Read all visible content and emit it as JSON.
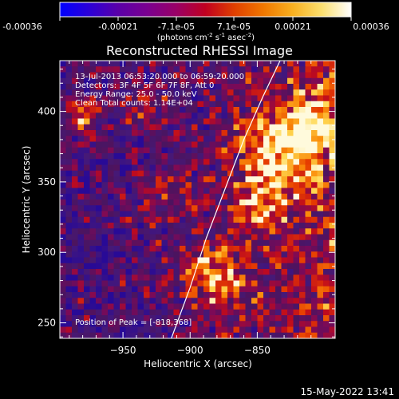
{
  "colorbar": {
    "ticks": [
      "-0.00036",
      "-0.00021",
      "-7.1e-05",
      "7.1e-05",
      "0.00021",
      "0.00036"
    ],
    "units_prefix": "(photons cm",
    "units_exp1": "-2",
    "units_mid": " s",
    "units_exp2": "-1",
    "units_end": " asec",
    "units_exp3": "-2",
    "units_close": ")",
    "gradient": [
      "#0000ff",
      "#2b00d8",
      "#5a00a8",
      "#7a0090",
      "#990066",
      "#c00020",
      "#e04000",
      "#f07800",
      "#f8b020",
      "#fce070",
      "#ffffff"
    ]
  },
  "chart_data": {
    "type": "heatmap",
    "title": "Reconstructed RHESSI Image",
    "xlabel": "Heliocentric X (arcsec)",
    "ylabel": "Heliocentric Y (arcsec)",
    "xlim": [
      -997,
      -792
    ],
    "ylim": [
      239,
      436
    ],
    "xticks": [
      -950,
      -900,
      -850
    ],
    "xtick_labels": [
      "−950",
      "−900",
      "−850"
    ],
    "yticks": [
      250,
      300,
      350,
      400
    ],
    "ytick_labels": [
      "250",
      "300",
      "350",
      "400"
    ],
    "annotations": [
      "13-Jul-2013 06:53:20.000 to 06:59:20.000",
      "Detectors: 3F 4F 5F 6F 7F 8F, Att 0",
      "Energy Range: 25.0 - 50.0 keV",
      "Clean    Total counts: 1.14E+04"
    ],
    "peak_label": "Position of Peak = [-818,368]",
    "peak": [
      -818,
      368
    ],
    "limb_curve": [
      [
        -914,
        239
      ],
      [
        -900,
        275
      ],
      [
        -888,
        310
      ],
      [
        -872,
        350
      ],
      [
        -860,
        380
      ],
      [
        -846,
        410
      ],
      [
        -833,
        436
      ]
    ]
  },
  "footer": {
    "date": "15-May-2022 13:41"
  }
}
